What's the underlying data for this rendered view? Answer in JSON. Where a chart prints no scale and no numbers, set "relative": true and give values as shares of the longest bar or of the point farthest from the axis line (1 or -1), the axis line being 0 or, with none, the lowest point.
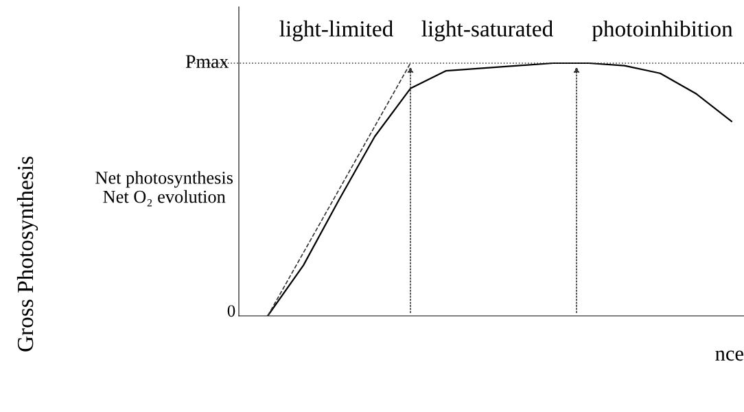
{
  "chart_data": {
    "type": "line",
    "relative": true,
    "xlabel": "nce",
    "ylabel": "Net photosynthesis\nNet O₂ evolution",
    "categories": [
      null,
      null,
      null,
      null,
      null,
      null,
      null,
      null,
      null,
      null,
      null,
      null,
      null,
      null
    ],
    "series": [
      {
        "color": "#000000",
        "line_style": "solid",
        "values": [
          0,
          0.2,
          0.46,
          0.71,
          0.9,
          0.97,
          0.98,
          0.99,
          1.0,
          1.0,
          0.99,
          0.96,
          0.88,
          0.77
        ]
      },
      {
        "color": "#333333",
        "line_style": "dashed",
        "values": [
          0,
          0.25,
          0.5,
          0.75,
          1.0,
          null,
          null,
          null,
          null,
          null,
          null,
          null,
          null,
          null
        ]
      }
    ],
    "ref_lines": [
      {
        "axis": "y",
        "value": 1,
        "label": "Pmax",
        "line_style": "dotted",
        "color": "#333333"
      }
    ],
    "annotations": [
      "light-limited",
      "light-saturated",
      "photoinhibition",
      "0",
      "Gross Photosynthesis"
    ],
    "grid": false,
    "legend": false,
    "marker": "none"
  }
}
